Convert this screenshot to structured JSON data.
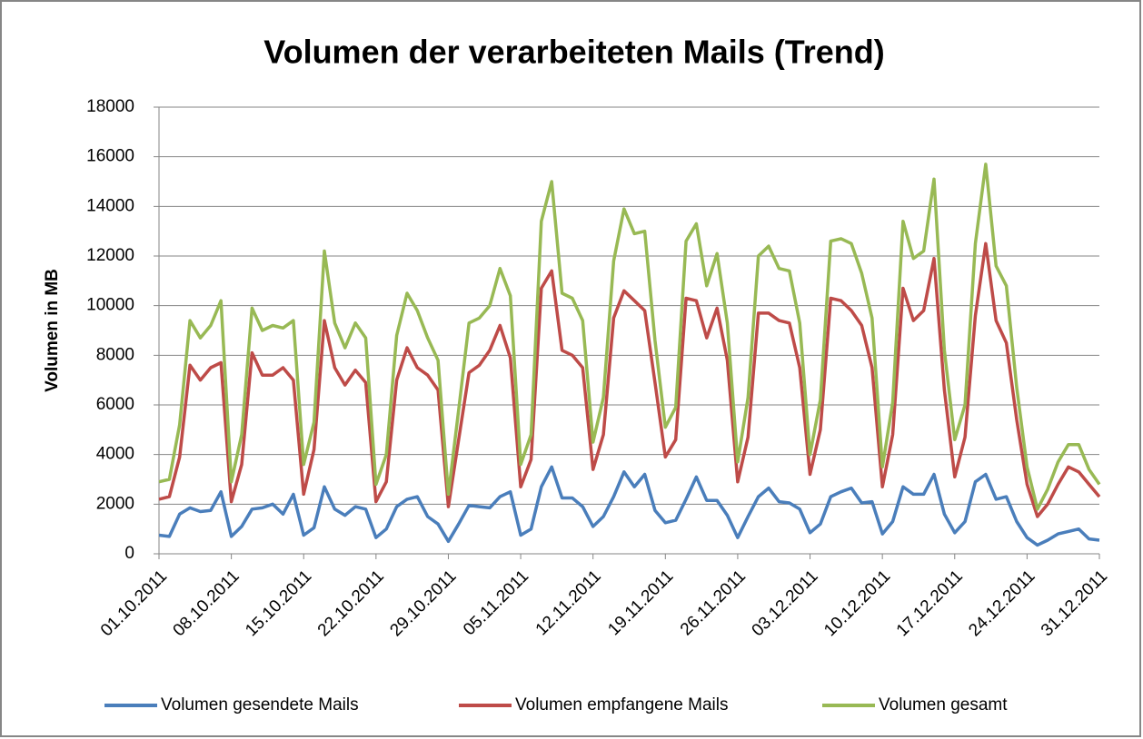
{
  "chart_data": {
    "type": "line",
    "title": "Volumen der verarbeiteten Mails (Trend)",
    "y_label": "Volumen in MB",
    "categories": [
      "01.10.2011",
      null,
      null,
      null,
      null,
      null,
      null,
      "08.10.2011",
      null,
      null,
      null,
      null,
      null,
      null,
      "15.10.2011",
      null,
      null,
      null,
      null,
      null,
      null,
      "22.10.2011",
      null,
      null,
      null,
      null,
      null,
      null,
      "29.10.2011",
      null,
      null,
      null,
      null,
      null,
      null,
      "05.11.2011",
      null,
      null,
      null,
      null,
      null,
      null,
      "12.11.2011",
      null,
      null,
      null,
      null,
      null,
      null,
      "19.11.2011",
      null,
      null,
      null,
      null,
      null,
      null,
      "26.11.2011",
      null,
      null,
      null,
      null,
      null,
      null,
      "03.12.2011",
      null,
      null,
      null,
      null,
      null,
      null,
      "10.12.2011",
      null,
      null,
      null,
      null,
      null,
      null,
      "17.12.2011",
      null,
      null,
      null,
      null,
      null,
      null,
      "24.12.2011",
      null,
      null,
      null,
      null,
      null,
      null,
      "31.12.2011"
    ],
    "series": [
      {
        "name": "Volumen gesendete Mails",
        "color": "#4a7ebb",
        "values": [
          750,
          700,
          1600,
          1850,
          1700,
          1750,
          2500,
          700,
          1100,
          1800,
          1850,
          2000,
          1600,
          2400,
          750,
          1050,
          2700,
          1800,
          1550,
          1900,
          1800,
          650,
          1000,
          1900,
          2200,
          2300,
          1500,
          1200,
          500,
          1200,
          1950,
          1900,
          1850,
          2300,
          2500,
          750,
          1000,
          2700,
          3500,
          2250,
          2250,
          1900,
          1100,
          1500,
          2300,
          3300,
          2700,
          3200,
          1750,
          1250,
          1350,
          2200,
          3100,
          2150,
          2150,
          1550,
          650,
          1500,
          2300,
          2650,
          2100,
          2050,
          1800,
          850,
          1200,
          2300,
          2500,
          2650,
          2050,
          2100,
          800,
          1300,
          2700,
          2400,
          2400,
          3200,
          1600,
          850,
          1300,
          2900,
          3200,
          2200,
          2300,
          1300,
          650,
          350,
          550,
          800,
          900,
          1000,
          600,
          550
        ]
      },
      {
        "name": "Volumen empfangene Mails",
        "color": "#be4b48",
        "values": [
          2200,
          2300,
          3900,
          7600,
          7000,
          7500,
          7700,
          2100,
          3600,
          8100,
          7200,
          7200,
          7500,
          7000,
          2400,
          4200,
          9400,
          7500,
          6800,
          7400,
          6900,
          2100,
          2900,
          7000,
          8300,
          7500,
          7200,
          6600,
          1900,
          4600,
          7300,
          7600,
          8200,
          9200,
          7900,
          2700,
          3800,
          10700,
          11400,
          8200,
          8000,
          7500,
          3400,
          4800,
          9500,
          10600,
          10200,
          9800,
          6900,
          3900,
          4600,
          10300,
          10200,
          8700,
          9900,
          7800,
          2900,
          4700,
          9700,
          9700,
          9400,
          9300,
          7500,
          3200,
          5000,
          10300,
          10200,
          9800,
          9200,
          7500,
          2700,
          4800,
          10700,
          9400,
          9800,
          11900,
          6600,
          3100,
          4700,
          9600,
          12500,
          9400,
          8500,
          5400,
          2800,
          1500,
          2000,
          2800,
          3500,
          3300,
          2800,
          2300
        ]
      },
      {
        "name": "Volumen gesamt",
        "color": "#98b954",
        "values": [
          2900,
          3000,
          5200,
          9400,
          8700,
          9200,
          10200,
          2900,
          4800,
          9900,
          9000,
          9200,
          9100,
          9400,
          3600,
          5300,
          12200,
          9300,
          8300,
          9300,
          8700,
          2800,
          4000,
          8800,
          10500,
          9800,
          8700,
          7800,
          2400,
          5800,
          9300,
          9500,
          10000,
          11500,
          10400,
          3600,
          4800,
          13400,
          15000,
          10500,
          10300,
          9400,
          4500,
          6300,
          11800,
          13900,
          12900,
          13000,
          8600,
          5100,
          5900,
          12600,
          13300,
          10800,
          12100,
          9300,
          3700,
          6300,
          12000,
          12400,
          11500,
          11400,
          9300,
          4000,
          6200,
          12600,
          12700,
          12500,
          11300,
          9500,
          3500,
          6100,
          13400,
          11900,
          12200,
          15100,
          8200,
          4600,
          6000,
          12500,
          15700,
          11600,
          10800,
          6700,
          3500,
          1800,
          2600,
          3700,
          4400,
          4400,
          3400,
          2800
        ]
      }
    ],
    "ylim": [
      0,
      18000
    ],
    "yticks": [
      0,
      2000,
      4000,
      6000,
      8000,
      10000,
      12000,
      14000,
      16000,
      18000
    ],
    "grid": true
  }
}
